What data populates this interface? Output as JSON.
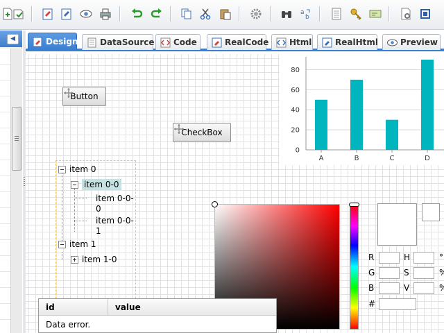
{
  "toolbar": {
    "icons": [
      "new-page",
      "save",
      "design-mode",
      "code-mode",
      "preview-eye",
      "print",
      "undo",
      "redo",
      "copy",
      "cut",
      "paste",
      "settings-gear",
      "binoculars-find",
      "replace",
      "grid-settings",
      "key",
      "cert",
      "page-settings",
      "help-book"
    ]
  },
  "tabs": [
    {
      "label": "Design",
      "active": true,
      "icon": "design-icon"
    },
    {
      "label": "DataSource",
      "active": false,
      "icon": "datasource-icon"
    },
    {
      "label": "Code",
      "active": false,
      "icon": "code-icon"
    },
    {
      "label": "RealCode",
      "active": false,
      "icon": "realcode-icon"
    },
    {
      "label": "Html",
      "active": false,
      "icon": "html-icon"
    },
    {
      "label": "RealHtml",
      "active": false,
      "icon": "realhtml-icon"
    },
    {
      "label": "Preview",
      "active": false,
      "icon": "preview-icon"
    }
  ],
  "canvas": {
    "button_label": "Button",
    "checkbox_label": "CheckBox"
  },
  "tree": {
    "item0": "item 0",
    "item00": "item 0-0",
    "item000a": "item 0-0-",
    "item000b": "0",
    "item001a": "item 0-0-",
    "item001b": "1",
    "item1": "item 1",
    "item10": "item 1-0"
  },
  "chart_data": {
    "type": "bar",
    "categories": [
      "A",
      "B",
      "C",
      "D"
    ],
    "values": [
      50,
      70,
      30,
      90
    ],
    "ylim": [
      0,
      90
    ],
    "yticks": [
      0,
      20,
      40,
      60,
      80
    ],
    "bar_color": "#00b5be",
    "grid": true,
    "title": "",
    "xlabel": "",
    "ylabel": ""
  },
  "color_picker": {
    "labels": {
      "r": "R",
      "g": "G",
      "b": "B",
      "h": "H",
      "s": "S",
      "v": "V",
      "hex": "#"
    },
    "units": {
      "h": "°",
      "s": "%",
      "v": "%"
    }
  },
  "grid": {
    "col_id": "id",
    "col_value": "value",
    "message": "Data error."
  }
}
